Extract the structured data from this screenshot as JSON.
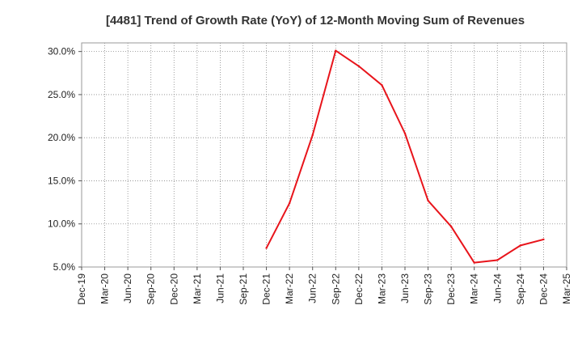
{
  "chart_data": {
    "type": "line",
    "title": "[4481]  Trend of Growth Rate (YoY) of 12-Month Moving Sum of Revenues",
    "xlabel": "",
    "ylabel": "",
    "x_ticks": [
      "Dec-19",
      "Mar-20",
      "Jun-20",
      "Sep-20",
      "Dec-20",
      "Mar-21",
      "Jun-21",
      "Sep-21",
      "Dec-21",
      "Mar-22",
      "Jun-22",
      "Sep-22",
      "Dec-22",
      "Mar-23",
      "Jun-23",
      "Sep-23",
      "Dec-23",
      "Mar-24",
      "Jun-24",
      "Sep-24",
      "Dec-24",
      "Mar-25"
    ],
    "y_ticks": [
      "5.0%",
      "10.0%",
      "15.0%",
      "20.0%",
      "25.0%",
      "30.0%"
    ],
    "y_tick_values": [
      5,
      10,
      15,
      20,
      25,
      30
    ],
    "ylim": [
      5,
      31
    ],
    "grid": true,
    "series": [
      {
        "color": "#e8141b",
        "x": [
          "Dec-21",
          "Mar-22",
          "Jun-22",
          "Sep-22",
          "Dec-22",
          "Mar-23",
          "Jun-23",
          "Sep-23",
          "Dec-23",
          "Mar-24",
          "Jun-24",
          "Sep-24",
          "Dec-24"
        ],
        "values": [
          7.2,
          12.4,
          20.3,
          30.1,
          28.3,
          26.1,
          20.5,
          12.7,
          9.7,
          5.5,
          5.8,
          7.5,
          8.2
        ]
      }
    ]
  }
}
